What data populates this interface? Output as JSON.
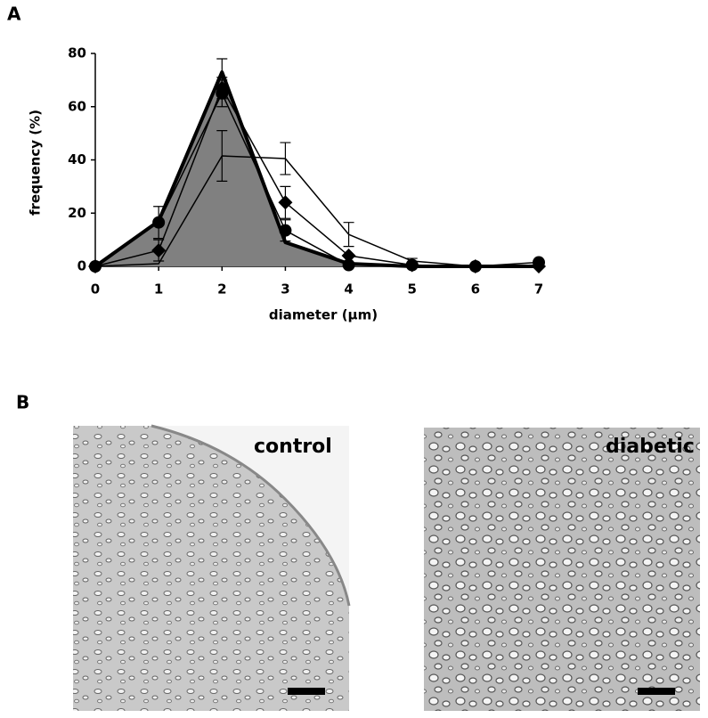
{
  "panel_labels": [
    "A",
    "B"
  ],
  "images": [
    {
      "label": "control"
    },
    {
      "label": "diabetic"
    }
  ],
  "chart_data": {
    "type": "line",
    "xlabel": "diameter (µm)",
    "ylabel": "frequency (%)",
    "x": [
      0,
      1,
      2,
      3,
      4,
      5,
      6,
      7
    ],
    "xlim": [
      0,
      7
    ],
    "xticks": [
      0,
      1,
      2,
      3,
      4,
      5,
      6,
      7
    ],
    "ylim": [
      0,
      80
    ],
    "yticks": [
      0,
      20,
      40,
      60,
      80
    ],
    "series": [
      {
        "color": "#000000",
        "fill": "#808080",
        "line_width": 4,
        "marker": "none",
        "values": [
          0,
          17,
          73,
          9,
          1,
          0,
          0,
          0
        ],
        "errors": [
          null,
          null,
          5,
          null,
          null,
          null,
          null,
          null
        ]
      },
      {
        "color": "#000000",
        "line_width": 1.5,
        "marker": "none",
        "values": [
          0,
          1,
          41.5,
          40.5,
          12,
          2,
          0,
          0.5
        ],
        "errors": [
          null,
          null,
          9.5,
          6,
          4.5,
          1,
          null,
          null
        ]
      },
      {
        "color": "#000000",
        "line_width": 1.5,
        "marker": "diamond",
        "values": [
          0,
          6,
          67,
          24,
          4,
          0.5,
          0,
          0
        ],
        "errors": [
          null,
          4,
          4,
          6,
          null,
          null,
          null,
          null
        ]
      },
      {
        "color": "#000000",
        "line_width": 1.5,
        "marker": "circle",
        "values": [
          0,
          16.5,
          65,
          13.5,
          0.5,
          0.5,
          0,
          1.5
        ],
        "errors": [
          null,
          6,
          5,
          4,
          null,
          null,
          null,
          null
        ]
      }
    ]
  }
}
